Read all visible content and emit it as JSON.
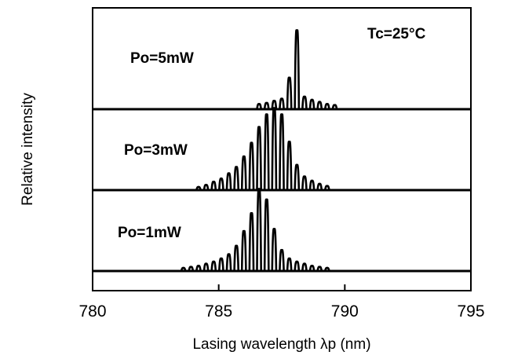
{
  "chart_data": {
    "type": "line",
    "title": "",
    "xlabel": "Lasing wavelength λp (nm)",
    "ylabel": "Relative intensity",
    "xlim": [
      780,
      795
    ],
    "x_ticks": [
      780,
      785,
      790,
      795
    ],
    "x_tick_labels": [
      "780",
      "785",
      "790",
      "795"
    ],
    "grid": false,
    "annotations": [
      "Tc=25°C"
    ],
    "series": [
      {
        "name": "Po=5mW",
        "peaks_x": [
          786.6,
          786.9,
          787.2,
          787.5,
          787.8,
          788.1,
          788.4,
          788.7,
          789.0,
          789.3,
          789.6
        ],
        "peaks_y": [
          0.05,
          0.06,
          0.08,
          0.1,
          0.3,
          0.75,
          0.12,
          0.09,
          0.07,
          0.05,
          0.04
        ]
      },
      {
        "name": "Po=3mW",
        "peaks_x": [
          784.2,
          784.5,
          784.8,
          785.1,
          785.4,
          785.7,
          786.0,
          786.3,
          786.6,
          786.9,
          787.2,
          787.5,
          787.8,
          788.1,
          788.4,
          788.7,
          789.0,
          789.3
        ],
        "peaks_y": [
          0.03,
          0.05,
          0.08,
          0.11,
          0.16,
          0.22,
          0.32,
          0.45,
          0.6,
          0.72,
          0.78,
          0.72,
          0.46,
          0.24,
          0.13,
          0.09,
          0.06,
          0.04
        ]
      },
      {
        "name": "Po=1mW",
        "peaks_x": [
          783.6,
          783.9,
          784.2,
          784.5,
          784.8,
          785.1,
          785.4,
          785.7,
          786.0,
          786.3,
          786.6,
          786.9,
          787.2,
          787.5,
          787.8,
          788.1,
          788.4,
          788.7,
          789.0,
          789.3
        ],
        "peaks_y": [
          0.03,
          0.04,
          0.05,
          0.07,
          0.09,
          0.12,
          0.16,
          0.24,
          0.38,
          0.55,
          0.78,
          0.68,
          0.4,
          0.2,
          0.12,
          0.09,
          0.07,
          0.05,
          0.04,
          0.03
        ]
      }
    ]
  }
}
